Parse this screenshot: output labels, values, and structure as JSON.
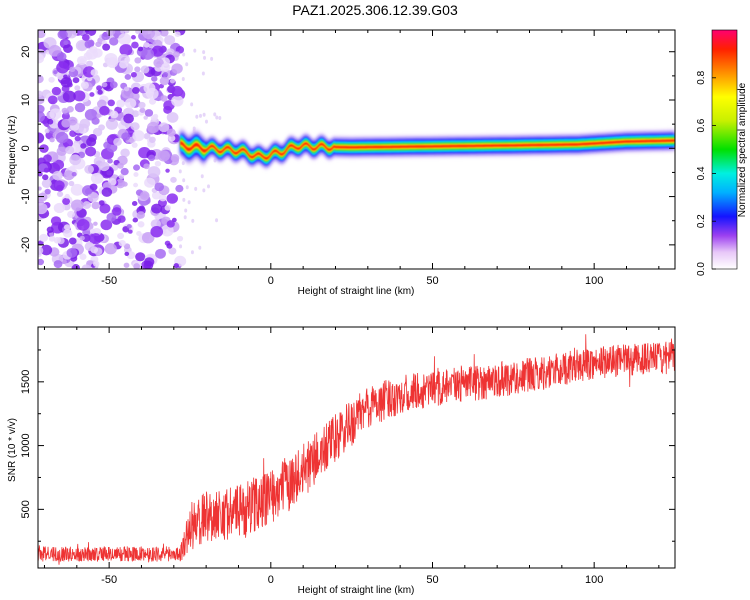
{
  "title": "PAZ1.2025.306.12.39.G03",
  "chart_data": [
    {
      "type": "heatmap",
      "title": "PAZ1.2025.306.12.39.G03",
      "xlabel": "Height of straight line (km)",
      "ylabel": "Frequency (Hz)",
      "xlim": [
        -72,
        125
      ],
      "ylim": [
        -25,
        24.5
      ],
      "xticks": [
        -50,
        0,
        50,
        100
      ],
      "yticks": [
        -20,
        -10,
        0,
        10,
        20
      ],
      "noise_region_x": [
        -72,
        -28
      ],
      "signal_start_x": -28,
      "center_line": [
        {
          "x": -28,
          "y": 0.5
        },
        {
          "x": -20,
          "y": 0.0
        },
        {
          "x": -10,
          "y": -0.5
        },
        {
          "x": -3,
          "y": -1.8
        },
        {
          "x": 3,
          "y": -0.8
        },
        {
          "x": 8,
          "y": 0.5
        },
        {
          "x": 15,
          "y": 0.3
        },
        {
          "x": 25,
          "y": 0.2
        },
        {
          "x": 50,
          "y": 0.4
        },
        {
          "x": 75,
          "y": 0.6
        },
        {
          "x": 95,
          "y": 0.8
        },
        {
          "x": 110,
          "y": 1.4
        },
        {
          "x": 125,
          "y": 1.6
        }
      ],
      "colorbar": {
        "label": "Normalized spectral amplitude",
        "range": [
          0,
          1
        ],
        "ticks": [
          "0.0",
          "0.2",
          "0.4",
          "0.6",
          "0.8"
        ]
      }
    },
    {
      "type": "line",
      "xlabel": "Height of straight line (km)",
      "ylabel": "SNR (10 * v/v)",
      "xlim": [
        -72,
        125
      ],
      "ylim": [
        40,
        1930
      ],
      "xticks": [
        -50,
        0,
        50,
        100
      ],
      "yticks": [
        500,
        1000,
        1500
      ],
      "color": "#ee3333",
      "trend": [
        {
          "x": -72,
          "y": 150
        },
        {
          "x": -28,
          "y": 150
        },
        {
          "x": -25,
          "y": 350
        },
        {
          "x": -20,
          "y": 450
        },
        {
          "x": -10,
          "y": 480
        },
        {
          "x": 0,
          "y": 600
        },
        {
          "x": 10,
          "y": 800
        },
        {
          "x": 20,
          "y": 1050
        },
        {
          "x": 30,
          "y": 1300
        },
        {
          "x": 40,
          "y": 1400
        },
        {
          "x": 60,
          "y": 1480
        },
        {
          "x": 80,
          "y": 1550
        },
        {
          "x": 100,
          "y": 1650
        },
        {
          "x": 125,
          "y": 1700
        }
      ],
      "noise_amplitude": [
        {
          "x": -72,
          "y": 60
        },
        {
          "x": -28,
          "y": 60
        },
        {
          "x": -25,
          "y": 200
        },
        {
          "x": 0,
          "y": 220
        },
        {
          "x": 20,
          "y": 200
        },
        {
          "x": 40,
          "y": 150
        },
        {
          "x": 125,
          "y": 120
        }
      ]
    }
  ]
}
